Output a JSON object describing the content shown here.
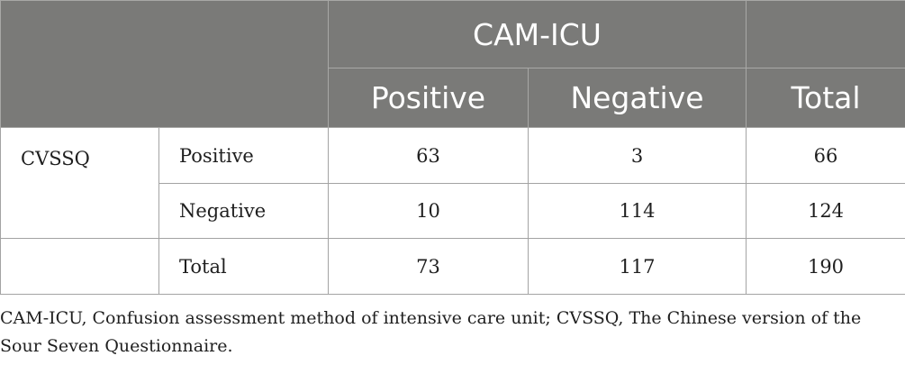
{
  "table": {
    "super_header": "CAM-ICU",
    "col_headers": [
      "Positive",
      "Negative",
      "Total"
    ],
    "row_group_label": "CVSSQ",
    "rows": [
      {
        "label": "Positive",
        "values": [
          "63",
          "3",
          "66"
        ]
      },
      {
        "label": "Negative",
        "values": [
          "10",
          "114",
          "124"
        ]
      },
      {
        "label": "Total",
        "values": [
          "73",
          "117",
          "190"
        ]
      }
    ]
  },
  "footnote": "CAM-ICU, Confusion assessment method of intensive care unit; CVSSQ, The Chinese version of the Sour Seven Questionnaire."
}
